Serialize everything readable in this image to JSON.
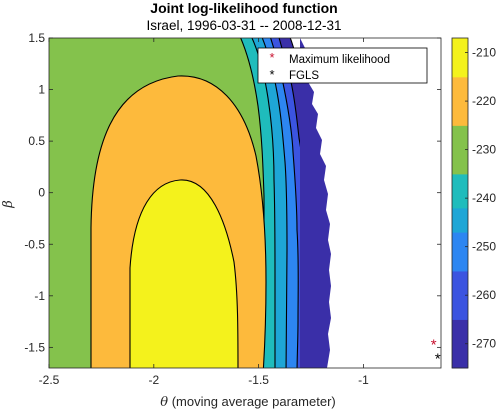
{
  "chart_data": {
    "type": "contour",
    "title": "Joint log-likelihood function",
    "subtitle": "Israel, 1996-03-31 -- 2008-12-31",
    "xlabel_symbol": "θ",
    "xlabel_text": " (moving average parameter)",
    "ylabel": "β",
    "xlim": [
      -2.5,
      -0.63
    ],
    "ylim": [
      -1.7,
      1.5
    ],
    "xticks": [
      -2.5,
      -2,
      -1.5,
      -1
    ],
    "xtick_labels": [
      "-2.5",
      "-2",
      "-1.5",
      "-1"
    ],
    "yticks": [
      1.5,
      1,
      0.5,
      0,
      -0.5,
      -1,
      -1.5
    ],
    "ytick_labels": [
      "1.5",
      "1",
      "0.5",
      "0",
      "-0.5",
      "-1",
      "-1.5"
    ],
    "colorbar": {
      "ticks": [
        -210,
        -220,
        -230,
        -240,
        -250,
        -260,
        -270
      ],
      "tick_labels": [
        "-210",
        "-220",
        "-230",
        "-240",
        "-250",
        "-260",
        "-270"
      ],
      "range": [
        -275,
        -207
      ]
    },
    "contour_levels": [
      {
        "level": -270,
        "color": "#3a2fa8"
      },
      {
        "level": -260,
        "color": "#3b54e0"
      },
      {
        "level": -250,
        "color": "#2d86f1"
      },
      {
        "level": -245,
        "color": "#1ea6d6"
      },
      {
        "level": -240,
        "color": "#1fbcbc"
      },
      {
        "level": -230,
        "color": "#84c24c"
      },
      {
        "level": -220,
        "color": "#fdba3c"
      },
      {
        "level": -210,
        "color": "#f4f21c"
      }
    ],
    "colorbar_bands": [
      "#3a2fa8",
      "#3b54e0",
      "#2d86f1",
      "#1ea6d6",
      "#1fbcbc",
      "#84c24c",
      "#fdba3c",
      "#f4f21c"
    ],
    "points": [
      {
        "name": "Maximum likelihood",
        "x": -0.665,
        "y": -1.46,
        "color": "#c8102e"
      },
      {
        "name": "FGLS",
        "x": -0.645,
        "y": -1.6,
        "color": "#000000"
      }
    ],
    "legend": {
      "placement": "top-right",
      "entries": [
        "Maximum likelihood",
        "FGLS"
      ]
    }
  }
}
